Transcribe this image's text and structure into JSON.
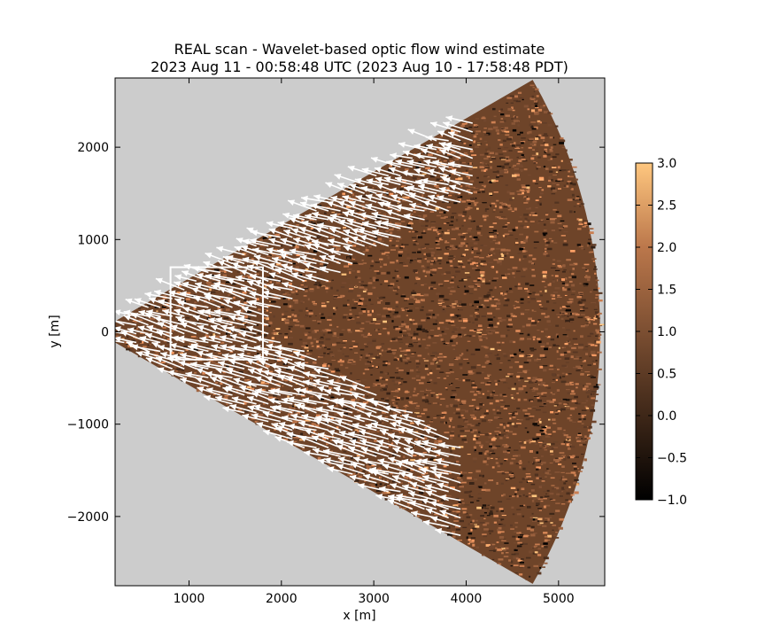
{
  "chart_data": {
    "type": "heatmap",
    "title": "REAL scan - Wavelet-based optic flow wind estimate",
    "subtitle": "2023 Aug 11 - 00:58:48 UTC (2023 Aug 10 - 17:58:48 PDT)",
    "xlabel": "x [m]",
    "ylabel": "y [m]",
    "xlim": [
      200,
      5500
    ],
    "ylim": [
      -2750,
      2750
    ],
    "x_ticks": [
      1000,
      2000,
      3000,
      4000,
      5000
    ],
    "y_ticks": [
      -2000,
      -1000,
      0,
      1000,
      2000
    ],
    "x_tick_labels": [
      "1000",
      "2000",
      "3000",
      "4000",
      "5000"
    ],
    "y_tick_labels": [
      "−2000",
      "−1000",
      "0",
      "1000",
      "2000"
    ],
    "grid": false,
    "colormap": "copper",
    "colorbar": {
      "range": [
        -1.0,
        3.0
      ],
      "ticks": [
        -1.0,
        -0.5,
        0.0,
        0.5,
        1.0,
        1.5,
        2.0,
        2.5,
        3.0
      ],
      "tick_labels": [
        "−1.0",
        "−0.5",
        "0.0",
        "0.5",
        "1.0",
        "1.5",
        "2.0",
        "2.5",
        "3.0"
      ]
    },
    "scan_sector": {
      "origin": [
        0,
        0
      ],
      "max_range_m": 5450,
      "azimuth_from_deg": -30,
      "azimuth_to_deg": 30
    },
    "wind_vector_region_box": {
      "x": [
        800,
        1800
      ],
      "y": [
        -300,
        700
      ]
    },
    "wind_direction": "vectors point west-southwest (toward lower-left)",
    "colors": {
      "background": "#ffffff",
      "masked": "#cccccc",
      "vectors": "#ffffff",
      "box": "#ffffff"
    }
  }
}
